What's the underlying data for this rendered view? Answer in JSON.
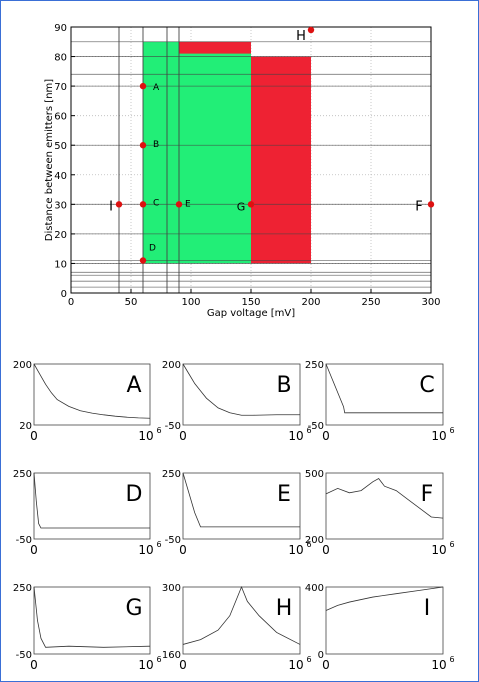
{
  "colors": {
    "green_region": "#22ee77",
    "red_region": "#ee2233",
    "point": "#dd1111",
    "grid": "#444444",
    "border": "#3a6fd6"
  },
  "chart_data": [
    {
      "type": "scatter",
      "xlabel": "Gap voltage [mV]",
      "ylabel": "Distance between emitters [nm]",
      "xlim": [
        0,
        300
      ],
      "ylim": [
        0,
        90
      ],
      "xticks": [
        0,
        50,
        100,
        150,
        200,
        250,
        300
      ],
      "yticks": [
        0,
        10,
        20,
        30,
        40,
        50,
        60,
        70,
        80,
        90
      ],
      "vertical_lines": [
        40,
        60,
        80,
        90
      ],
      "horizontal_lines": [
        2,
        4,
        6,
        7,
        10,
        11,
        20,
        30,
        50,
        70,
        74,
        80,
        85
      ],
      "regions": [
        {
          "color": "green",
          "x": [
            60,
            150
          ],
          "y": [
            10,
            85
          ]
        },
        {
          "color": "red",
          "x": [
            90,
            150
          ],
          "y": [
            81,
            85
          ]
        },
        {
          "color": "red",
          "x": [
            150,
            200
          ],
          "y": [
            10,
            80
          ]
        }
      ],
      "points": [
        {
          "label": "A",
          "x": 60,
          "y": 70
        },
        {
          "label": "B",
          "x": 60,
          "y": 50
        },
        {
          "label": "C",
          "x": 60,
          "y": 30
        },
        {
          "label": "D",
          "x": 60,
          "y": 11
        },
        {
          "label": "E",
          "x": 90,
          "y": 30
        },
        {
          "label": "F",
          "x": 300,
          "y": 30
        },
        {
          "label": "G",
          "x": 150,
          "y": 30
        },
        {
          "label": "H",
          "x": 200,
          "y": 89
        },
        {
          "label": "I",
          "x": 40,
          "y": 30
        }
      ]
    },
    {
      "type": "line",
      "label": "A",
      "ytick_labels": [
        "200",
        "20"
      ],
      "xtick_labels": [
        "0",
        "10",
        "6"
      ],
      "ylim": [
        20,
        200
      ],
      "x": [
        0,
        0.05,
        0.1,
        0.15,
        0.2,
        0.3,
        0.4,
        0.5,
        0.6,
        0.7,
        0.8,
        0.9,
        1.0
      ],
      "y": [
        200,
        170,
        140,
        115,
        95,
        75,
        62,
        55,
        50,
        46,
        43,
        41,
        40
      ]
    },
    {
      "type": "line",
      "label": "B",
      "ytick_labels": [
        "200",
        "-50"
      ],
      "xtick_labels": [
        "0",
        "10",
        "6"
      ],
      "ylim": [
        -50,
        200
      ],
      "x": [
        0,
        0.05,
        0.1,
        0.15,
        0.2,
        0.3,
        0.4,
        0.5,
        0.6,
        0.8,
        1.0
      ],
      "y": [
        200,
        160,
        120,
        90,
        60,
        20,
        0,
        -10,
        -10,
        -8,
        -8
      ]
    },
    {
      "type": "line",
      "label": "C",
      "ytick_labels": [
        "250",
        "-50"
      ],
      "xtick_labels": [
        "0",
        "10",
        "6"
      ],
      "ylim": [
        -50,
        250
      ],
      "x": [
        0,
        0.05,
        0.1,
        0.15,
        0.16,
        0.3,
        0.5,
        0.8,
        1.0
      ],
      "y": [
        250,
        180,
        110,
        40,
        10,
        10,
        10,
        10,
        10
      ]
    },
    {
      "type": "line",
      "label": "D",
      "ytick_labels": [
        "250",
        "-50"
      ],
      "xtick_labels": [
        "0",
        "10",
        "6"
      ],
      "ylim": [
        -50,
        250
      ],
      "x": [
        0,
        0.02,
        0.04,
        0.06,
        0.3,
        0.6,
        1.0
      ],
      "y": [
        250,
        120,
        20,
        0,
        0,
        0,
        0
      ]
    },
    {
      "type": "line",
      "label": "E",
      "ytick_labels": [
        "250",
        "-50"
      ],
      "xtick_labels": [
        "0",
        "10",
        "6"
      ],
      "ylim": [
        -50,
        250
      ],
      "x": [
        0,
        0.05,
        0.1,
        0.15,
        0.3,
        0.6,
        1.0
      ],
      "y": [
        250,
        160,
        70,
        5,
        5,
        5,
        5
      ]
    },
    {
      "type": "line",
      "label": "F",
      "ytick_labels": [
        "500",
        "200"
      ],
      "xtick_labels": [
        "0",
        "10",
        "6"
      ],
      "ylim": [
        200,
        500
      ],
      "x": [
        0,
        0.1,
        0.2,
        0.3,
        0.4,
        0.45,
        0.5,
        0.6,
        0.7,
        0.8,
        0.9,
        1.0
      ],
      "y": [
        405,
        430,
        410,
        420,
        460,
        475,
        440,
        420,
        380,
        340,
        300,
        295
      ]
    },
    {
      "type": "line",
      "label": "G",
      "ytick_labels": [
        "250",
        "-50"
      ],
      "xtick_labels": [
        "0",
        "10",
        "6"
      ],
      "ylim": [
        -50,
        250
      ],
      "x": [
        0,
        0.03,
        0.06,
        0.1,
        0.3,
        0.6,
        1.0
      ],
      "y": [
        250,
        100,
        20,
        -20,
        -15,
        -20,
        -15
      ]
    },
    {
      "type": "line",
      "label": "H",
      "ytick_labels": [
        "300",
        "160"
      ],
      "xtick_labels": [
        "0",
        "10",
        "6"
      ],
      "ylim": [
        160,
        300
      ],
      "x": [
        0,
        0.15,
        0.3,
        0.4,
        0.45,
        0.5,
        0.55,
        0.65,
        0.8,
        1.0
      ],
      "y": [
        180,
        190,
        210,
        240,
        270,
        300,
        270,
        240,
        205,
        180
      ]
    },
    {
      "type": "line",
      "label": "I",
      "ytick_labels": [
        "400",
        "0"
      ],
      "xtick_labels": [
        "0",
        "10",
        "6"
      ],
      "ylim": [
        0,
        400
      ],
      "x": [
        0,
        0.1,
        0.2,
        0.4,
        0.6,
        0.8,
        1.0
      ],
      "y": [
        260,
        290,
        310,
        340,
        360,
        380,
        400
      ]
    }
  ]
}
